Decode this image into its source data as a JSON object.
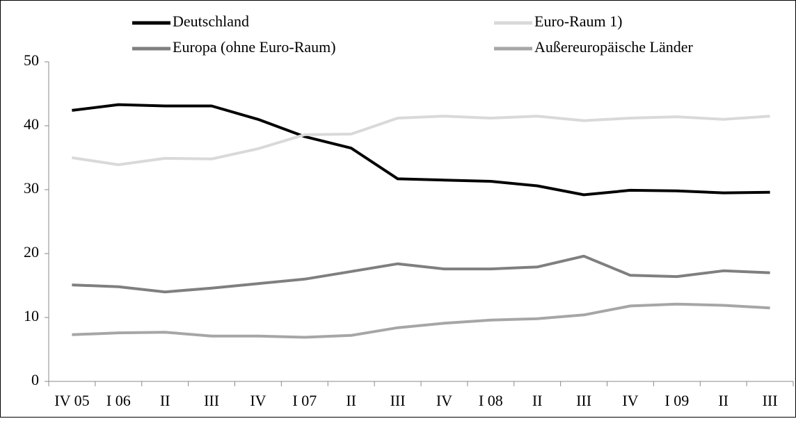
{
  "chart_data": {
    "type": "line",
    "categories": [
      "IV 05",
      "I 06",
      "II",
      "III",
      "IV",
      "I 07",
      "II",
      "III",
      "IV",
      "I 08",
      "II",
      "III",
      "IV",
      "I 09",
      "II",
      "III"
    ],
    "series": [
      {
        "name": "Deutschland",
        "color": "#000000",
        "values": [
          42.4,
          43.3,
          43.1,
          43.1,
          41.0,
          38.3,
          36.5,
          31.7,
          31.5,
          31.3,
          30.6,
          29.2,
          29.9,
          29.8,
          29.5,
          29.6
        ]
      },
      {
        "name": "Euro-Raum 1)",
        "color": "#d9d9d9",
        "values": [
          35.0,
          33.9,
          34.9,
          34.8,
          36.4,
          38.6,
          38.7,
          41.2,
          41.5,
          41.2,
          41.5,
          40.8,
          41.2,
          41.4,
          41.0,
          41.5
        ]
      },
      {
        "name": "Europa (ohne Euro-Raum)",
        "color": "#7f7f7f",
        "values": [
          15.1,
          14.8,
          14.0,
          14.6,
          15.3,
          16.0,
          17.2,
          18.4,
          17.6,
          17.6,
          17.9,
          19.6,
          16.6,
          16.4,
          17.3,
          17.0
        ]
      },
      {
        "name": "Außereuropäische Länder",
        "color": "#a6a6a6",
        "values": [
          7.3,
          7.6,
          7.7,
          7.1,
          7.1,
          6.9,
          7.2,
          8.4,
          9.1,
          9.6,
          9.8,
          10.4,
          11.8,
          12.1,
          11.9,
          11.5
        ]
      }
    ],
    "ylim": [
      0,
      50
    ],
    "yticks": [
      0,
      10,
      20,
      30,
      40,
      50
    ],
    "legend": "top"
  }
}
